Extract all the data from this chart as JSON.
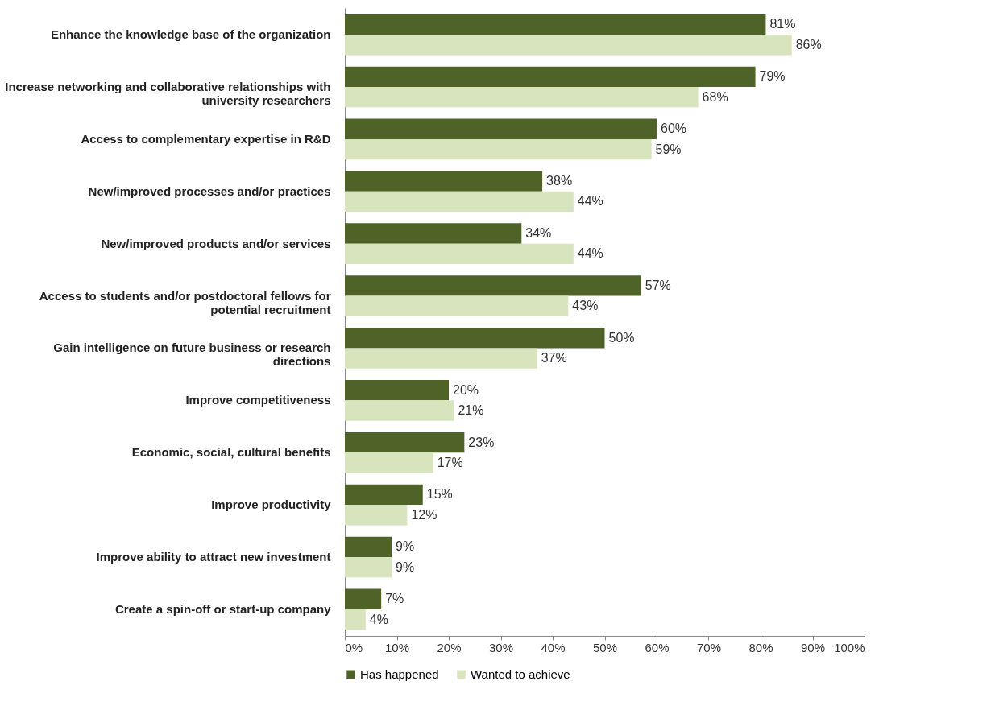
{
  "chart_data": {
    "type": "bar",
    "orientation": "horizontal",
    "categories": [
      "Enhance the knowledge base of the organization",
      "Increase networking and collaborative relationships with university researchers",
      "Access to complementary expertise in R&D",
      "New/improved processes and/or practices",
      "New/improved products and/or services",
      "Access to students and/or postdoctoral fellows for potential recruitment",
      "Gain intelligence on future business or research directions",
      "Improve competitiveness",
      "Economic, social, cultural benefits",
      "Improve productivity",
      "Improve ability to attract new investment",
      "Create a spin-off or start-up company"
    ],
    "series": [
      {
        "name": "Has happened",
        "color": "#4f6228",
        "values": [
          81,
          79,
          60,
          38,
          34,
          57,
          50,
          20,
          23,
          15,
          9,
          7
        ],
        "value_labels": [
          "81%",
          "79%",
          "60%",
          "38%",
          "34%",
          "57%",
          "50%",
          "20%",
          "23%",
          "15%",
          "9%",
          "7%"
        ]
      },
      {
        "name": "Wanted to achieve",
        "color": "#d7e4bd",
        "values": [
          86,
          68,
          59,
          44,
          44,
          43,
          37,
          21,
          17,
          12,
          9,
          4
        ],
        "value_labels": [
          "86%",
          "68%",
          "59%",
          "44%",
          "44%",
          "43%",
          "37%",
          "21%",
          "17%",
          "12%",
          "9%",
          "4%"
        ]
      }
    ],
    "xlim": [
      0,
      100
    ],
    "xticks": [
      {
        "value": 0,
        "label": "0%"
      },
      {
        "value": 10,
        "label": "10%"
      },
      {
        "value": 20,
        "label": "20%"
      },
      {
        "value": 30,
        "label": "30%"
      },
      {
        "value": 40,
        "label": "40%"
      },
      {
        "value": 50,
        "label": "50%"
      },
      {
        "value": 60,
        "label": "60%"
      },
      {
        "value": 70,
        "label": "70%"
      },
      {
        "value": 80,
        "label": "80%"
      },
      {
        "value": 90,
        "label": "90%"
      },
      {
        "value": 100,
        "label": "100%"
      }
    ],
    "grid": false,
    "legend": "bottom"
  }
}
